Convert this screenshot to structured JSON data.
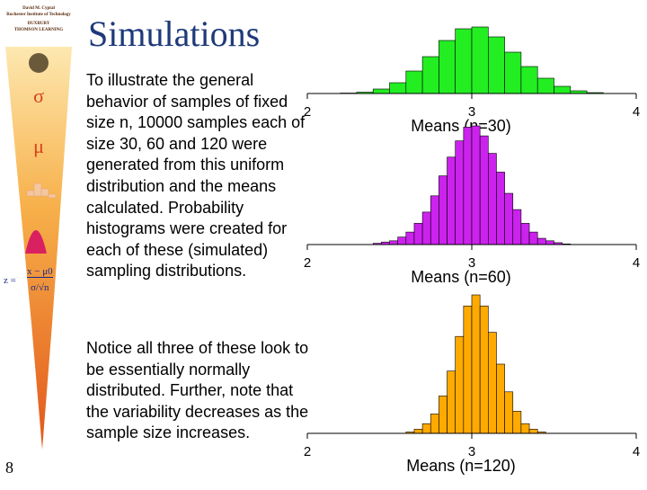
{
  "slide": {
    "title": "Simulations",
    "page_number": "8",
    "paragraph1": "To illustrate the general behavior of samples of fixed size n, 10000 samples each of size 30, 60 and 120 were generated from this uniform distribution and the means calculated. Probability histograms were created for each of these (simulated) sampling distributions.",
    "paragraph2": "Notice all three of these look to be essentially normally distributed. Further, note that the variability decreases as the sample size increases."
  },
  "sidebar": {
    "credit_lines": [
      "David M. Cyptal",
      "Rochester Institute of Technology",
      "DUXBURY",
      "THOMSON LEARNING"
    ],
    "formula_z": "z =",
    "formula_num": "x − μ0",
    "formula_den": "σ/√n"
  },
  "colors": {
    "title": "#1f3a7a",
    "green": "#22ee22",
    "magenta": "#cc22ee",
    "orange": "#ffaa00"
  },
  "chart_data": [
    {
      "type": "bar",
      "xlabel": "Means (n=30)",
      "xticks": [
        "2",
        "3",
        "4"
      ],
      "xlim": [
        2,
        4
      ],
      "color": "#22ee22",
      "bin_width": 0.1,
      "bin_starts": [
        2.2,
        2.3,
        2.4,
        2.5,
        2.6,
        2.7,
        2.8,
        2.9,
        3.0,
        3.1,
        3.2,
        3.3,
        3.4,
        3.5,
        3.6,
        3.7
      ],
      "values": [
        0.5,
        1.5,
        5,
        12,
        25,
        41,
        59,
        72,
        74,
        63,
        46,
        30,
        17,
        8,
        3,
        1
      ]
    },
    {
      "type": "bar",
      "xlabel": "Means (n=60)",
      "xticks": [
        "2",
        "3",
        "4"
      ],
      "xlim": [
        2,
        4
      ],
      "color": "#cc22ee",
      "bin_width": 0.05,
      "bin_starts": [
        2.4,
        2.45,
        2.5,
        2.55,
        2.6,
        2.65,
        2.7,
        2.75,
        2.8,
        2.85,
        2.9,
        2.95,
        3.0,
        3.05,
        3.1,
        3.15,
        3.2,
        3.25,
        3.3,
        3.35,
        3.4,
        3.45,
        3.5,
        3.55
      ],
      "values": [
        1,
        2,
        3,
        6,
        10,
        17,
        26,
        39,
        55,
        70,
        83,
        94,
        95,
        87,
        73,
        58,
        41,
        28,
        17,
        10,
        5,
        3,
        1.5,
        0.5
      ]
    },
    {
      "type": "bar",
      "xlabel": "Means (n=120)",
      "xticks": [
        "2",
        "3",
        "4"
      ],
      "xlim": [
        2,
        4
      ],
      "color": "#ffaa00",
      "bin_width": 0.05,
      "bin_starts": [
        2.6,
        2.65,
        2.7,
        2.75,
        2.8,
        2.85,
        2.9,
        2.95,
        3.0,
        3.05,
        3.1,
        3.15,
        3.2,
        3.25,
        3.3,
        3.35,
        3.4
      ],
      "values": [
        1,
        3,
        7,
        14,
        27,
        45,
        70,
        92,
        100,
        92,
        73,
        50,
        30,
        16,
        7,
        3,
        1
      ]
    }
  ]
}
